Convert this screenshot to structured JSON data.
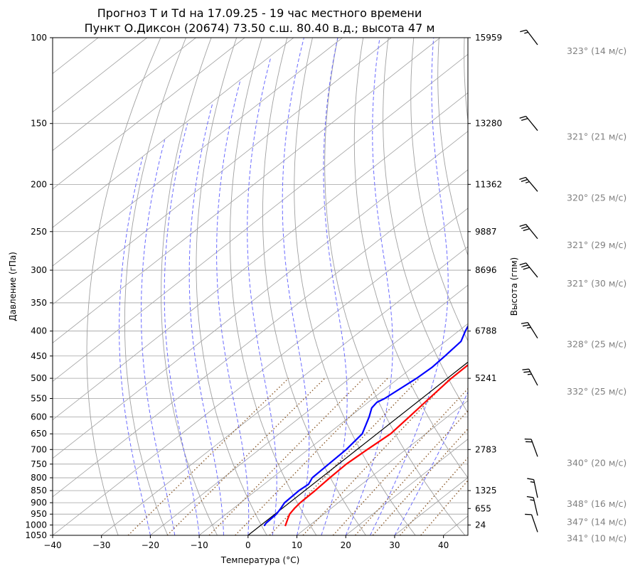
{
  "chart_data": {
    "type": "line",
    "title_line1": "Прогноз T и Td на 17.09.25 - 19 час местного времени",
    "title_line2": "Пункт О.Диксон (20674) 73.50 с.ш. 80.40 в.д.; высота 47 м",
    "xlabel": "Температура (°C)",
    "ylabel": "Давление (гПа)",
    "y2label": "Высота (гпм)",
    "xlim": [
      -40,
      45
    ],
    "ylim": [
      1050,
      100
    ],
    "x_ticks": [
      -40,
      -30,
      -20,
      -10,
      0,
      10,
      20,
      30,
      40
    ],
    "y_ticks": [
      100,
      150,
      200,
      250,
      300,
      350,
      400,
      450,
      500,
      550,
      600,
      650,
      700,
      750,
      800,
      850,
      900,
      950,
      1000,
      1050
    ],
    "height_ticks": [
      {
        "p": 100,
        "label": "15959"
      },
      {
        "p": 150,
        "label": "13280"
      },
      {
        "p": 200,
        "label": "11362"
      },
      {
        "p": 250,
        "label": "9887"
      },
      {
        "p": 300,
        "label": "8696"
      },
      {
        "p": 400,
        "label": "6788"
      },
      {
        "p": 500,
        "label": "5241"
      },
      {
        "p": 700,
        "label": "2783"
      },
      {
        "p": 850,
        "label": "1325"
      },
      {
        "p": 925,
        "label": "655"
      },
      {
        "p": 1000,
        "label": "24"
      }
    ],
    "series": [
      {
        "key": "T",
        "color": "#ff0000",
        "points": [
          [
            1005,
            5.2
          ],
          [
            975,
            4.0
          ],
          [
            950,
            3.0
          ],
          [
            925,
            2.5
          ],
          [
            900,
            2.2
          ],
          [
            850,
            2.1
          ],
          [
            800,
            1.8
          ],
          [
            750,
            1.6
          ],
          [
            700,
            2.1
          ],
          [
            650,
            2.8
          ],
          [
            600,
            2.2
          ],
          [
            550,
            1.5
          ],
          [
            500,
            0.8
          ],
          [
            450,
            0.7
          ],
          [
            400,
            0.5
          ],
          [
            350,
            1.8
          ],
          [
            320,
            3.0
          ],
          [
            310,
            4.0
          ],
          [
            300,
            5.5
          ],
          [
            290,
            8.2
          ],
          [
            270,
            11.5
          ],
          [
            250,
            13.0
          ],
          [
            240,
            14.5
          ],
          [
            230,
            17.0
          ],
          [
            210,
            21.0
          ],
          [
            200,
            23.5
          ],
          [
            170,
            30.0
          ],
          [
            150,
            35.5
          ],
          [
            130,
            42.5
          ],
          [
            110,
            50.0
          ]
        ]
      },
      {
        "key": "Td",
        "color": "#0000ff",
        "points": [
          [
            1005,
            1.0
          ],
          [
            1000,
            0.7
          ],
          [
            990,
            0.5
          ],
          [
            950,
            0.3
          ],
          [
            925,
            -0.3
          ],
          [
            900,
            -1.0
          ],
          [
            850,
            -1.2
          ],
          [
            825,
            -0.9
          ],
          [
            800,
            -1.8
          ],
          [
            750,
            -2.0
          ],
          [
            700,
            -2.2
          ],
          [
            650,
            -3.0
          ],
          [
            600,
            -6.0
          ],
          [
            575,
            -7.8
          ],
          [
            560,
            -8.2
          ],
          [
            550,
            -7.6
          ],
          [
            500,
            -6.3
          ],
          [
            475,
            -6.0
          ],
          [
            450,
            -6.3
          ],
          [
            420,
            -6.8
          ],
          [
            400,
            -8.6
          ],
          [
            390,
            -9.4
          ],
          [
            375,
            -9.5
          ],
          [
            350,
            -7.6
          ],
          [
            320,
            -5.8
          ],
          [
            300,
            -5.5
          ],
          [
            290,
            -6.7
          ],
          [
            280,
            -6.5
          ],
          [
            270,
            -5.5
          ],
          [
            250,
            -2.0
          ],
          [
            240,
            0.0
          ],
          [
            200,
            11.0
          ],
          [
            170,
            19.0
          ],
          [
            150,
            25.0
          ],
          [
            130,
            30.0
          ],
          [
            120,
            33.0
          ],
          [
            110,
            35.0
          ],
          [
            100,
            36.5
          ]
        ]
      }
    ],
    "winds": [
      {
        "p": 100,
        "label": "323° (14 м/с)"
      },
      {
        "p": 150,
        "label": "321° (21 м/с)"
      },
      {
        "p": 200,
        "label": "320° (25 м/с)"
      },
      {
        "p": 250,
        "label": "321° (29 м/с)"
      },
      {
        "p": 300,
        "label": "321° (30 м/с)"
      },
      {
        "p": 400,
        "label": "328° (25 м/с)"
      },
      {
        "p": 500,
        "label": "332° (25 м/с)"
      },
      {
        "p": 700,
        "label": "340° (20 м/с)"
      },
      {
        "p": 850,
        "label": "348° (16 м/с)"
      },
      {
        "p": 925,
        "label": "347° (14 м/с)"
      },
      {
        "p": 1000,
        "label": "341° (10 м/с)"
      }
    ],
    "colors": {
      "dry_adiabats": "#a0a0a0",
      "moist_adiabats": "#6b6bff",
      "mixing_ratio": "#8b5a2b",
      "isobars": "#a0a0a0",
      "wind_text": "#808080"
    }
  }
}
